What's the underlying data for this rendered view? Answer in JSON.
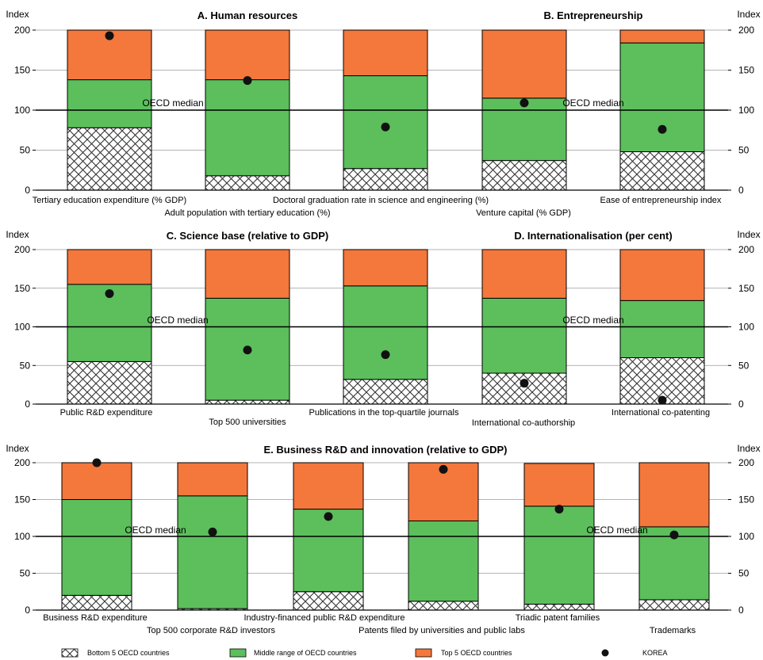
{
  "colors": {
    "bottom": "hatched-white",
    "middle": "#5CBF5C",
    "top": "#F4773C",
    "korea": "#111111",
    "median_line": "#000000"
  },
  "legend": {
    "bottom": "Bottom 5 OECD countries",
    "middle": "Middle range of OECD countries",
    "top": "Top 5 OECD countries",
    "korea": "KOREA"
  },
  "chart_data": [
    {
      "type": "bar",
      "stacked": true,
      "titles": [
        "A. Human resources",
        "B. Entrepreneurship"
      ],
      "ylabel_left": "Index",
      "ylabel_right": "Index",
      "ylim": [
        0,
        200
      ],
      "yticks": [
        0,
        50,
        100,
        150,
        200
      ],
      "median_value": 100,
      "median_labels": [
        "OECD median",
        "OECD median"
      ],
      "categories": [
        "Tertiary education expenditure (% GDP)",
        "Adult population with tertiary education (%)",
        "Doctoral graduation rate in science and engineering (%)",
        "Venture capital (% GDP)",
        "Ease of entrepreneurship index"
      ],
      "bottom_top": [
        78,
        18,
        27,
        37,
        48
      ],
      "middle_top": [
        138,
        138,
        143,
        115,
        184
      ],
      "top_top": [
        200,
        200,
        200,
        200,
        200
      ],
      "korea": [
        193,
        137,
        79,
        109,
        76
      ]
    },
    {
      "type": "bar",
      "stacked": true,
      "titles": [
        "C. Science base (relative to GDP)",
        "D. Internationalisation (per cent)"
      ],
      "ylabel_left": "Index",
      "ylabel_right": "Index",
      "ylim": [
        0,
        200
      ],
      "yticks": [
        0,
        50,
        100,
        150,
        200
      ],
      "median_value": 100,
      "median_labels": [
        "OECD median",
        "OECD median"
      ],
      "categories": [
        "Public R&D expenditure",
        "Top 500 universities",
        "Publications in the top-quartile journals",
        "International co-authorship",
        "International co-patenting"
      ],
      "bottom_top": [
        55,
        5,
        32,
        40,
        60
      ],
      "middle_top": [
        155,
        137,
        153,
        137,
        134
      ],
      "top_top": [
        200,
        200,
        200,
        200,
        200
      ],
      "korea": [
        143,
        70,
        64,
        27,
        5
      ]
    },
    {
      "type": "bar",
      "stacked": true,
      "titles": [
        "E. Business R&D and innovation (relative to GDP)"
      ],
      "ylabel_left": "Index",
      "ylabel_right": "Index",
      "ylim": [
        0,
        200
      ],
      "yticks": [
        0,
        50,
        100,
        150,
        200
      ],
      "median_value": 100,
      "median_labels": [
        "OECD median",
        "OECD median",
        "OECD median"
      ],
      "categories": [
        "Business R&D expenditure",
        "Top 500 corporate R&D investors",
        "Industry-financed public R&D expenditure",
        "Patents filed by universities and public labs",
        "Triadic patent families",
        "Trademarks"
      ],
      "bottom_top": [
        20,
        2,
        25,
        12,
        8,
        14
      ],
      "middle_top": [
        150,
        155,
        137,
        121,
        141,
        113
      ],
      "top_top": [
        200,
        200,
        200,
        200,
        199,
        200
      ],
      "korea": [
        200,
        106,
        127,
        191,
        137,
        102
      ]
    }
  ]
}
